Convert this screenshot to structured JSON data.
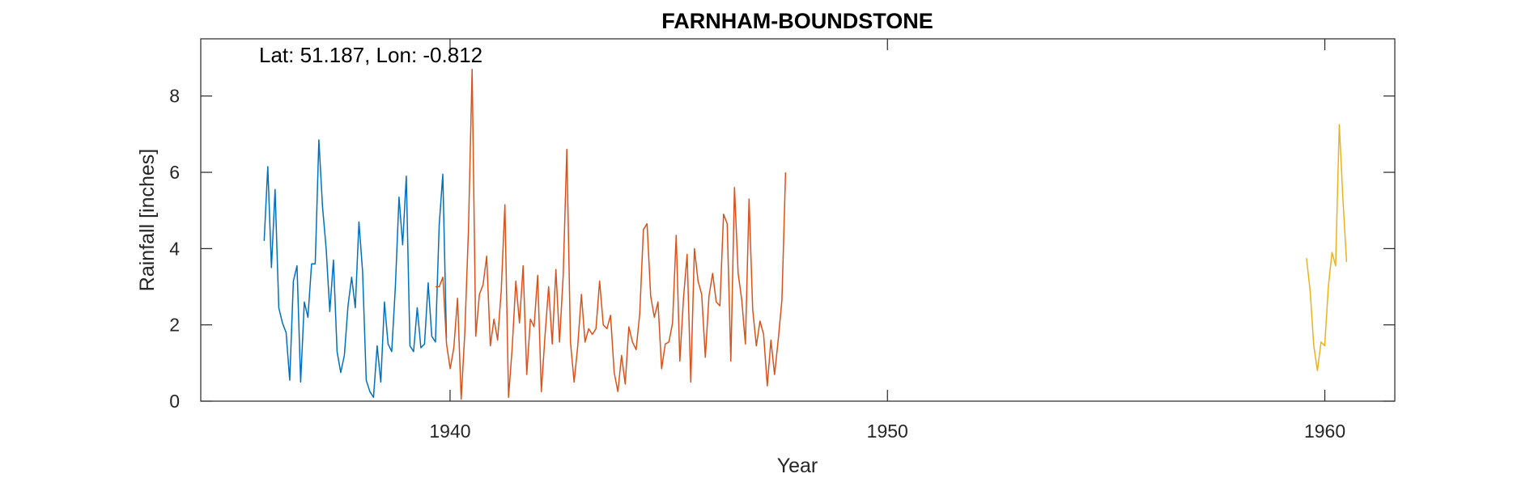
{
  "chart_data": {
    "type": "line",
    "title": "FARNHAM-BOUNDSTONE",
    "xlabel": "Year",
    "ylabel": "Rainfall [inches]",
    "annotation": "Lat: 51.187, Lon: -0.812",
    "xlim": [
      1934.3,
      1961.6
    ],
    "ylim": [
      0,
      9.5
    ],
    "xticks": [
      1940,
      1950,
      1960
    ],
    "yticks": [
      0,
      2,
      4,
      6,
      8
    ],
    "grid": false,
    "legend": "none",
    "series": [
      {
        "color": "#0072BD",
        "start_year": 1935.75,
        "step": 0.08333,
        "values": [
          4.2,
          6.15,
          3.5,
          5.55,
          2.45,
          2.05,
          1.8,
          0.55,
          3.15,
          3.55,
          0.5,
          2.6,
          2.2,
          3.6,
          3.6,
          6.85,
          5.1,
          4.0,
          2.35,
          3.7,
          1.3,
          0.75,
          1.2,
          2.5,
          3.25,
          2.45,
          4.7,
          3.4,
          0.55,
          0.25,
          0.1,
          1.45,
          0.5,
          2.6,
          1.5,
          1.3,
          3.0,
          5.35,
          4.1,
          5.9,
          1.45,
          1.3,
          2.45,
          1.4,
          1.5,
          3.1,
          1.7,
          1.55,
          4.6,
          5.95,
          1.65
        ]
      },
      {
        "color": "#D95319",
        "start_year": 1939.67,
        "step": 0.08333,
        "values": [
          3.0,
          3.0,
          3.25,
          1.5,
          0.85,
          1.4,
          2.7,
          0.05,
          1.8,
          4.5,
          8.7,
          1.7,
          2.8,
          3.05,
          3.8,
          1.45,
          2.15,
          1.6,
          2.9,
          5.15,
          0.1,
          1.4,
          3.15,
          2.05,
          3.55,
          0.7,
          2.15,
          1.95,
          3.3,
          0.25,
          1.7,
          3.0,
          1.5,
          3.45,
          1.55,
          3.3,
          6.6,
          1.55,
          0.5,
          1.45,
          2.8,
          1.55,
          1.9,
          1.75,
          1.9,
          3.15,
          2.0,
          1.9,
          2.25,
          0.75,
          0.25,
          1.2,
          0.45,
          1.95,
          1.55,
          1.35,
          2.3,
          4.5,
          4.65,
          2.75,
          2.2,
          2.6,
          0.85,
          1.5,
          1.55,
          2.05,
          4.35,
          1.05,
          2.7,
          3.85,
          0.5,
          4.0,
          3.15,
          2.8,
          1.15,
          2.75,
          3.35,
          2.6,
          2.5,
          4.9,
          4.65,
          1.05,
          5.6,
          3.35,
          2.65,
          1.5,
          5.3,
          2.4,
          1.45,
          2.1,
          1.75,
          0.4,
          1.6,
          0.7,
          1.6,
          2.65,
          6.0
        ]
      },
      {
        "color": "#EDB120",
        "start_year": 1959.58,
        "step": 0.08333,
        "values": [
          3.75,
          2.9,
          1.45,
          0.8,
          1.55,
          1.45,
          3.0,
          3.9,
          3.55,
          7.25,
          5.3,
          3.65
        ]
      }
    ]
  }
}
